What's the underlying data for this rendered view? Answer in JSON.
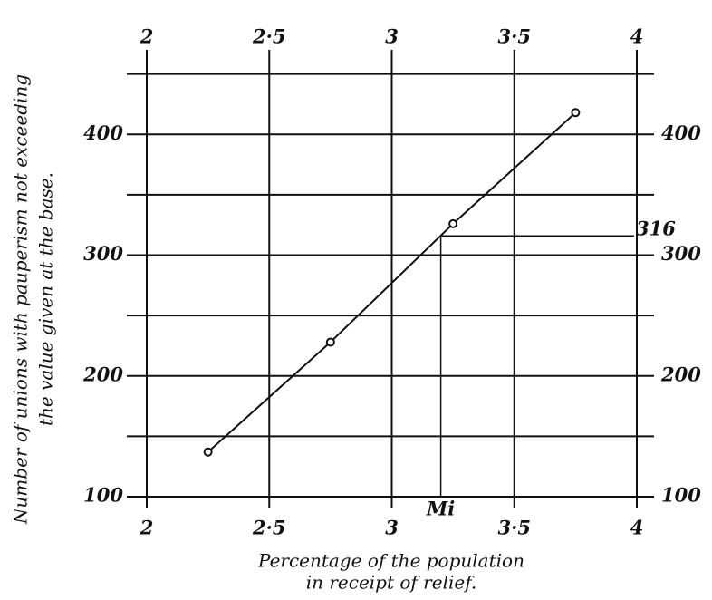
{
  "chart_data": {
    "type": "line",
    "xlabel": [
      "Percentage of the population",
      "in receipt of relief."
    ],
    "ylabel": [
      "Number of unions with pauperism not exceeding",
      "the value given at the base."
    ],
    "x": [
      2.25,
      2.75,
      3.25,
      3.75
    ],
    "series": [
      {
        "color": "#111111",
        "values": [
          137,
          228,
          326,
          418
        ]
      }
    ],
    "xlim": [
      2,
      4
    ],
    "ylim": [
      100,
      470
    ],
    "xticks": [
      2,
      {
        "value": 2.5,
        "label": "2·5"
      },
      3,
      {
        "value": 3.5,
        "label": "3·5"
      },
      4
    ],
    "yticks": [
      100,
      200,
      300,
      400
    ],
    "ygrid": [
      100,
      150,
      200,
      250,
      300,
      350,
      400,
      450
    ],
    "median": {
      "x": 3.2,
      "y": 316,
      "x_label": "Mi"
    },
    "grid": true
  }
}
